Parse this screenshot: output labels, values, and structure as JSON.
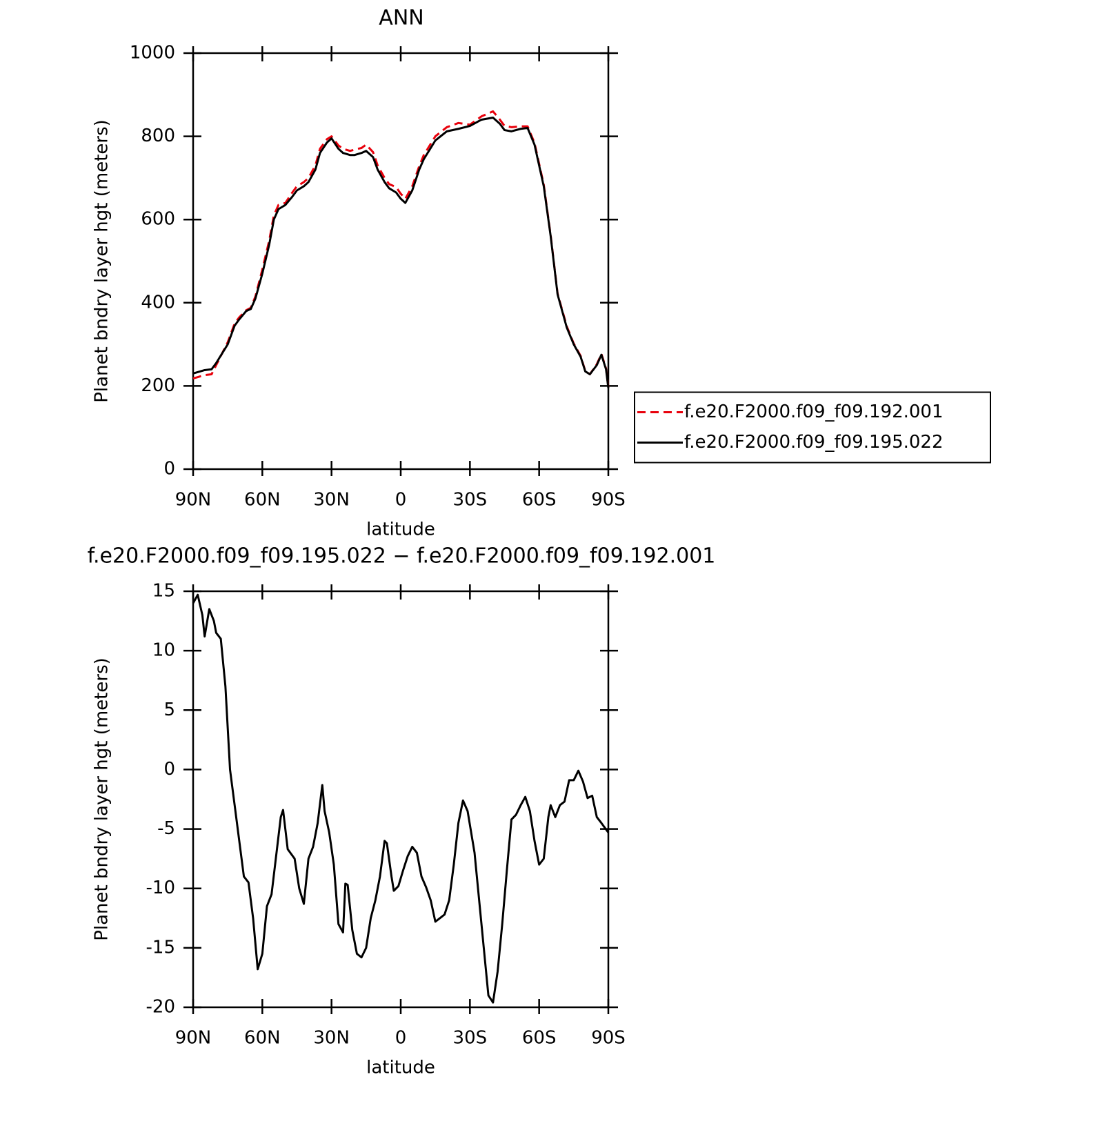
{
  "chart_data": [
    {
      "type": "line",
      "title": "ANN",
      "xlabel": "latitude",
      "ylabel": "Planet bndry layer hgt (meters)",
      "xlim": [
        90,
        -90
      ],
      "ylim": [
        0,
        1000
      ],
      "xticks": [
        {
          "value": 90,
          "label": "90N"
        },
        {
          "value": 60,
          "label": "60N"
        },
        {
          "value": 30,
          "label": "30N"
        },
        0,
        {
          "value": -30,
          "label": "30S"
        },
        {
          "value": -60,
          "label": "60S"
        },
        {
          "value": -90,
          "label": "90S"
        }
      ],
      "yticks": [
        0,
        200,
        400,
        600,
        800,
        1000
      ],
      "legend": "right",
      "x": [
        90,
        85,
        82,
        80,
        75,
        72,
        70,
        67,
        65,
        63,
        60,
        57,
        55,
        53,
        50,
        47,
        45,
        42,
        40,
        37,
        35,
        32,
        30,
        27,
        25,
        22,
        20,
        17,
        15,
        12,
        10,
        7,
        5,
        2,
        0,
        -2,
        -5,
        -8,
        -10,
        -15,
        -20,
        -25,
        -30,
        -35,
        -40,
        -43,
        -45,
        -48,
        -52,
        -55,
        -58,
        -62,
        -65,
        -68,
        -72,
        -75,
        -78,
        -80,
        -82,
        -85,
        -87,
        -89,
        -90
      ],
      "series": [
        {
          "name": "f.e20.F2000.f09_f09.192.001",
          "color": "#e8000b",
          "linestyle": "dashed",
          "values": [
            218,
            226,
            228,
            250,
            305,
            350,
            365,
            382,
            388,
            415,
            480,
            550,
            610,
            635,
            640,
            665,
            680,
            690,
            700,
            730,
            770,
            793,
            800,
            778,
            770,
            765,
            768,
            772,
            780,
            762,
            730,
            700,
            685,
            678,
            662,
            650,
            680,
            728,
            755,
            800,
            822,
            832,
            828,
            848,
            860,
            840,
            825,
            822,
            824,
            824,
            784,
            684,
            562,
            422,
            343,
            302,
            272,
            236,
            228,
            252,
            277,
            242,
            198
          ]
        },
        {
          "name": "f.e20.F2000.f09_f09.195.022",
          "color": "#000000",
          "linestyle": "solid",
          "values": [
            230,
            238,
            240,
            255,
            300,
            345,
            360,
            380,
            385,
            410,
            470,
            540,
            600,
            625,
            635,
            655,
            670,
            680,
            690,
            720,
            760,
            785,
            795,
            770,
            760,
            755,
            755,
            760,
            765,
            750,
            720,
            690,
            675,
            665,
            650,
            640,
            670,
            720,
            745,
            790,
            812,
            818,
            825,
            840,
            845,
            830,
            815,
            812,
            818,
            820,
            780,
            680,
            560,
            420,
            340,
            300,
            270,
            235,
            228,
            250,
            275,
            240,
            195
          ]
        }
      ]
    },
    {
      "type": "line",
      "title": "f.e20.F2000.f09_f09.195.022 − f.e20.F2000.f09_f09.192.001",
      "xlabel": "latitude",
      "ylabel": "Planet bndry layer hgt (meters)",
      "xlim": [
        90,
        -90
      ],
      "ylim": [
        -20,
        15
      ],
      "xticks": [
        {
          "value": 90,
          "label": "90N"
        },
        {
          "value": 60,
          "label": "60N"
        },
        {
          "value": 30,
          "label": "30N"
        },
        0,
        {
          "value": -30,
          "label": "30S"
        },
        {
          "value": -60,
          "label": "60S"
        },
        {
          "value": -90,
          "label": "90S"
        }
      ],
      "yticks": [
        -20,
        -15,
        -10,
        -5,
        0,
        5,
        10,
        15
      ],
      "color": "#000000",
      "x": [
        90,
        88,
        86,
        85,
        83,
        81,
        80,
        78,
        76,
        74,
        72,
        70,
        68,
        66,
        64,
        62,
        60,
        58,
        56,
        52,
        51,
        49,
        46,
        44,
        42,
        40,
        38,
        36,
        34,
        33,
        31,
        29,
        27,
        25,
        24,
        23,
        21,
        19,
        17,
        15,
        13,
        11,
        9,
        7,
        6,
        4,
        3,
        1,
        -1,
        -3,
        -5,
        -7,
        -9,
        -11,
        -13,
        -15,
        -17,
        -19,
        -21,
        -23,
        -25,
        -27,
        -29,
        -32,
        -34,
        -36,
        -38,
        -40,
        -42,
        -44,
        -46,
        -48,
        -50,
        -52,
        -54,
        -56,
        -58,
        -60,
        -62,
        -64,
        -65,
        -67,
        -69,
        -71,
        -73,
        -75,
        -77,
        -79,
        -81,
        -83,
        -85,
        -87,
        -90
      ],
      "values": [
        14,
        14.7,
        13,
        11.2,
        13.5,
        12.5,
        11.5,
        11,
        7,
        0,
        -3,
        -6,
        -9,
        -9.5,
        -12.5,
        -16.8,
        -15.5,
        -11.5,
        -10.5,
        -4,
        -3.4,
        -6.7,
        -7.5,
        -10,
        -11.3,
        -7.5,
        -6.5,
        -4.5,
        -1.3,
        -3.5,
        -5.3,
        -8,
        -13,
        -13.7,
        -9.6,
        -9.7,
        -13.5,
        -15.5,
        -15.8,
        -15,
        -12.5,
        -11,
        -9,
        -6,
        -6.2,
        -9,
        -10.2,
        -9.8,
        -8.5,
        -7.3,
        -6.5,
        -7,
        -9,
        -9.9,
        -11,
        -12.8,
        -12.5,
        -12.2,
        -11,
        -8,
        -4.5,
        -2.6,
        -3.5,
        -7,
        -11,
        -15,
        -19,
        -19.6,
        -17,
        -13,
        -8.5,
        -4.2,
        -3.8,
        -3,
        -2.3,
        -3.5,
        -6,
        -8,
        -7.5,
        -4,
        -3,
        -4,
        -3,
        -2.7,
        -0.9,
        -0.9,
        -0.1,
        -1,
        -2.4,
        -2.2,
        -4,
        -4.5,
        -5.3
      ]
    }
  ]
}
